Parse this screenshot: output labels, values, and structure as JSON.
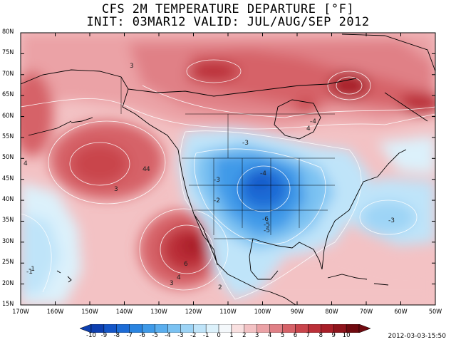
{
  "header": {
    "title_line1": "CFS 2M TEMPERATURE DEPARTURE [°F]",
    "title_line2": "INIT: 03MAR12 VALID: JUL/AUG/SEP 2012"
  },
  "map": {
    "lat_labels": [
      "80N",
      "75N",
      "70N",
      "65N",
      "60N",
      "55N",
      "50N",
      "45N",
      "40N",
      "35N",
      "30N",
      "25N",
      "20N",
      "15N"
    ],
    "lon_labels": [
      "170W",
      "160W",
      "150W",
      "140W",
      "130W",
      "120W",
      "110W",
      "100W",
      "90W",
      "80W",
      "70W",
      "60W",
      "50W"
    ],
    "contour_labels": [
      "3",
      "4",
      "3",
      "4",
      "-1",
      "3",
      "4",
      "2",
      "6",
      "-2",
      "-3",
      "-4",
      "-5",
      "-6",
      "-5",
      "-3",
      "-4",
      "4",
      "-3",
      "-1",
      "4"
    ],
    "colors": {
      "c-10": "#0d3fb0",
      "c-9": "#1456c8",
      "c-8": "#1d6cd6",
      "c-7": "#2a84e0",
      "c-6": "#3f9ae8",
      "c-5": "#5aaeee",
      "c-4": "#7bc2f2",
      "c-3": "#9dd4f6",
      "c-2": "#bfe4f9",
      "c-1": "#dcf1fb",
      "c0": "#f4f8fb",
      "c1": "#f9e0e0",
      "c2": "#f3c2c4",
      "c3": "#eba2a6",
      "c4": "#e08086",
      "c5": "#d66268",
      "c6": "#c9454c",
      "c7": "#bb2f38",
      "c8": "#a81f28",
      "c9": "#8f141c",
      "c10": "#700a10"
    }
  },
  "colorbar": {
    "labels": [
      "-10",
      "-9",
      "-8",
      "-7",
      "-6",
      "-5",
      "-4",
      "-3",
      "-2",
      "-1",
      "0",
      "1",
      "2",
      "3",
      "4",
      "5",
      "6",
      "7",
      "8",
      "9",
      "10"
    ]
  },
  "footer": {
    "timestamp": "2012-03-03-15:50"
  }
}
